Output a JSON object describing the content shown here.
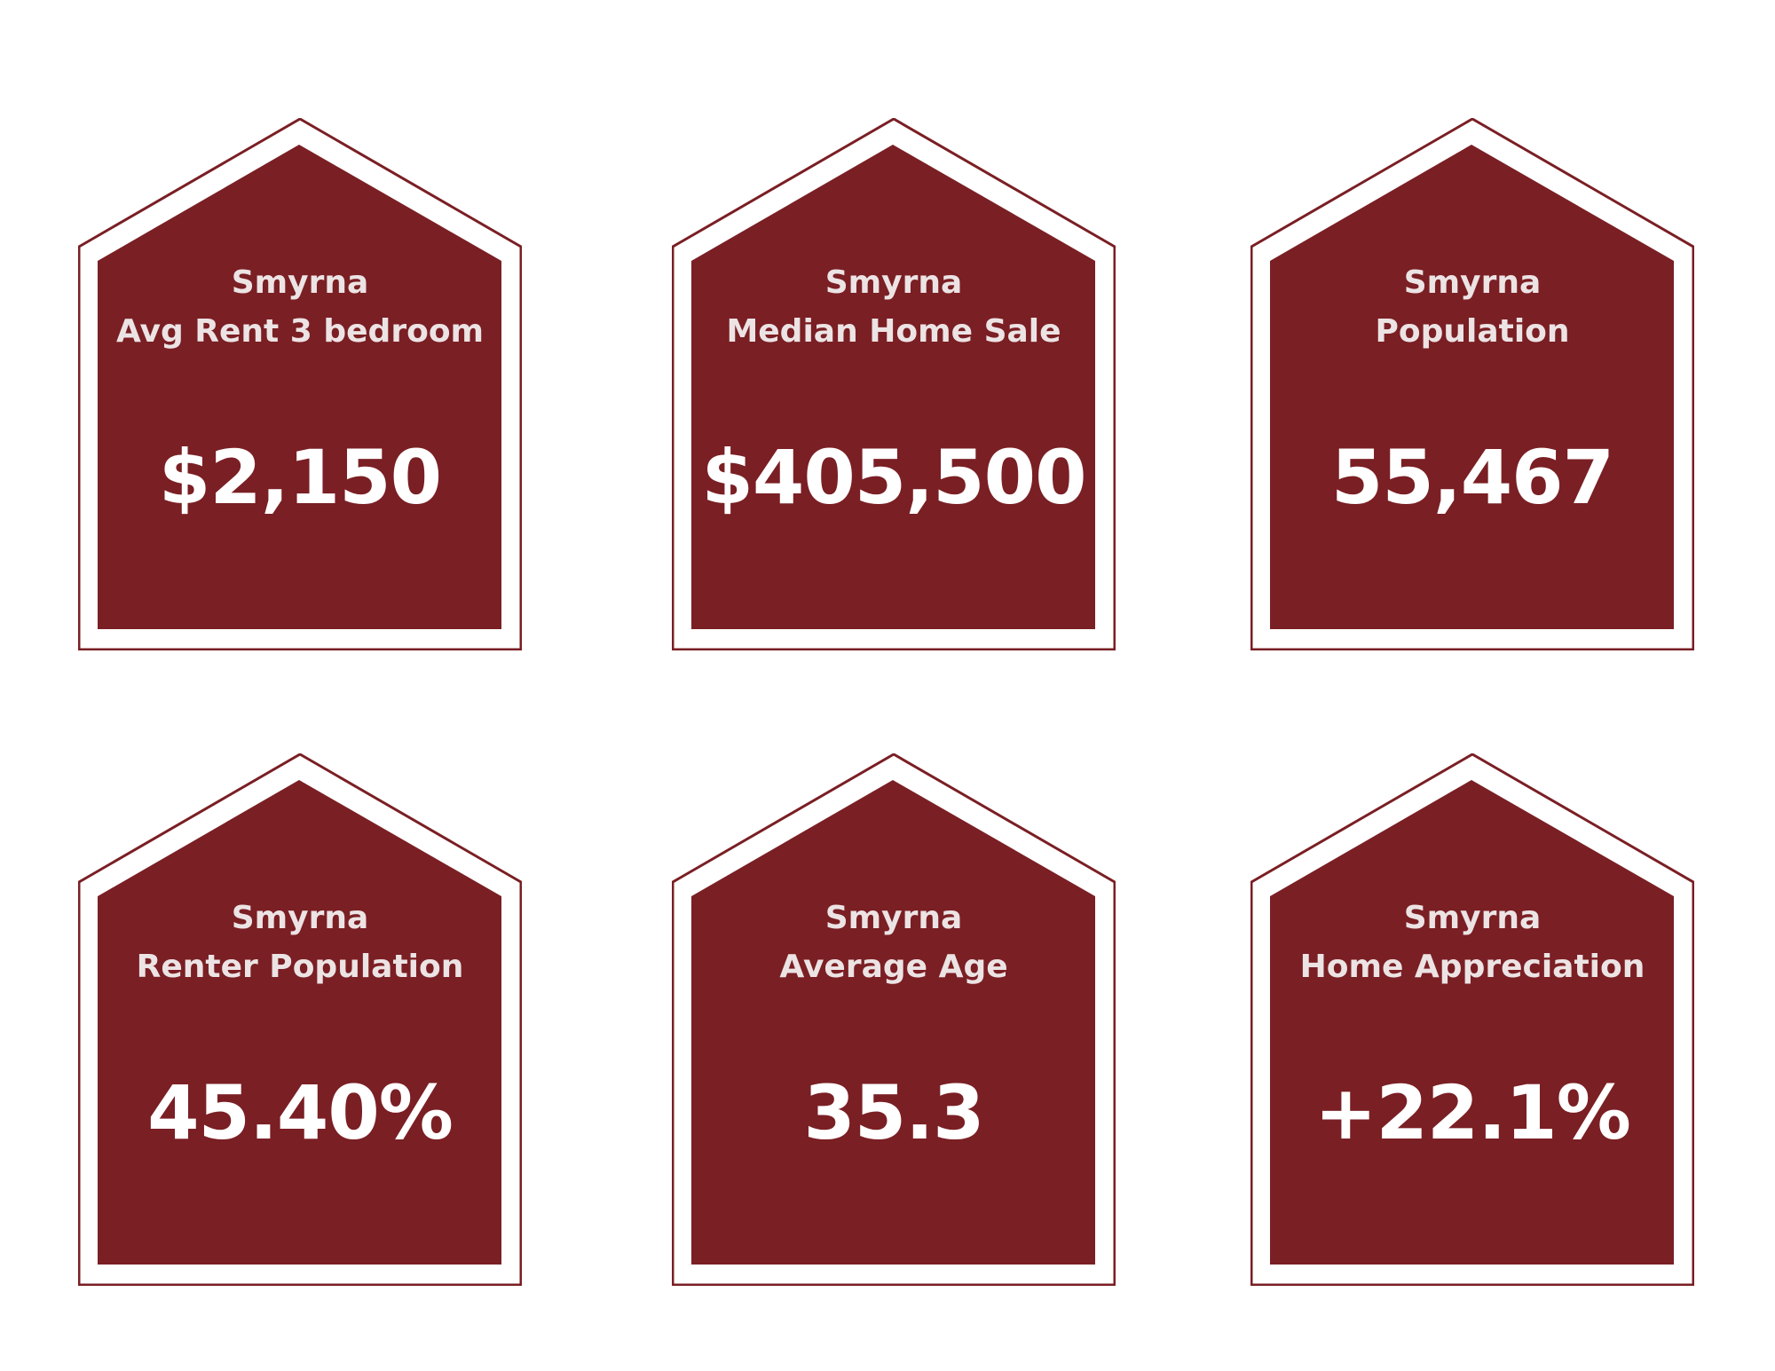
{
  "colors": {
    "card_fill": "#7a1f24",
    "card_outline": "#7a1f24",
    "background": "#ffffff",
    "text": "#ffffff"
  },
  "cards": [
    {
      "city": "Smyrna",
      "metric": "Avg Rent 3 bedroom",
      "value": "$2,150"
    },
    {
      "city": "Smyrna",
      "metric": "Median Home Sale",
      "value": "$405,500"
    },
    {
      "city": "Smyrna",
      "metric": "Population",
      "value": "55,467"
    },
    {
      "city": "Smyrna",
      "metric": "Renter Population",
      "value": "45.40%"
    },
    {
      "city": "Smyrna",
      "metric": "Average Age",
      "value": "35.3"
    },
    {
      "city": "Smyrna",
      "metric": "Home Appreciation",
      "value": "+22.1%"
    }
  ]
}
